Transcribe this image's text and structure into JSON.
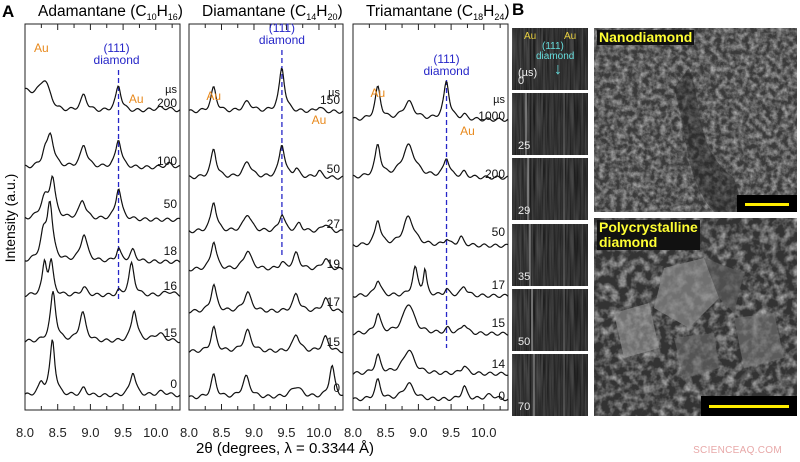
{
  "panel_labels": {
    "a": "A",
    "b": "B"
  },
  "y_axis_label": "Intensity (a.u.)",
  "x_axis_label": "2θ (degrees, λ = 0.3344 Å)",
  "colors": {
    "au": "#e8891c",
    "diamond": "#2626c8",
    "trace": "#111111",
    "strip_text": "#66dddd"
  },
  "chart_data": [
    {
      "type": "line",
      "title_main": "Adamantane (C",
      "title_sub1": "10",
      "title_mid": "H",
      "title_sub2": "16",
      "title_end": ")",
      "xlim": [
        8.0,
        10.37
      ],
      "x_ticks": [
        "8.0",
        "8.5",
        "9.0",
        "9.5",
        "10.0"
      ],
      "unit": "µs",
      "diamond_line_x": 9.43,
      "annotations": {
        "au1": "Au",
        "au2": "Au",
        "d1": "(111)",
        "d2": "diamond"
      },
      "series": [
        {
          "name": "200",
          "peaks": [
            [
              8.3,
              30,
              0.1
            ],
            [
              8.9,
              20,
              0.06
            ],
            [
              9.43,
              32,
              0.05
            ],
            [
              10.1,
              5,
              0.2
            ]
          ],
          "slope": 25
        },
        {
          "name": "100",
          "peaks": [
            [
              8.3,
              15,
              0.05
            ],
            [
              8.39,
              40,
              0.06
            ],
            [
              8.9,
              28,
              0.06
            ],
            [
              9.43,
              36,
              0.05
            ],
            [
              10.2,
              5,
              0.08
            ]
          ],
          "slope": 0
        },
        {
          "name": "50",
          "peaks": [
            [
              8.3,
              25,
              0.08
            ],
            [
              8.42,
              48,
              0.05
            ],
            [
              8.88,
              24,
              0.06
            ],
            [
              9.43,
              40,
              0.05
            ]
          ],
          "slope": 0
        },
        {
          "name": "18",
          "peaks": [
            [
              8.28,
              30,
              0.06
            ],
            [
              8.38,
              70,
              0.05
            ],
            [
              8.9,
              34,
              0.06
            ],
            [
              9.43,
              16,
              0.04
            ],
            [
              9.65,
              14,
              0.05
            ]
          ],
          "slope": 0
        },
        {
          "name": "16",
          "peaks": [
            [
              8.3,
              40,
              0.04
            ],
            [
              8.4,
              40,
              0.04
            ],
            [
              8.9,
              10,
              0.06
            ],
            [
              9.43,
              5,
              0.03
            ],
            [
              9.63,
              40,
              0.05
            ],
            [
              10.2,
              5,
              0.1
            ]
          ],
          "slope": 0
        },
        {
          "name": "15",
          "peaks": [
            [
              8.43,
              62,
              0.05
            ],
            [
              8.88,
              36,
              0.06
            ],
            [
              9.67,
              40,
              0.05
            ],
            [
              10.05,
              10,
              0.1
            ]
          ],
          "slope": 0
        },
        {
          "name": "0",
          "peaks": [
            [
              8.25,
              15,
              0.05
            ],
            [
              8.42,
              70,
              0.045
            ],
            [
              8.9,
              9,
              0.05
            ],
            [
              9.65,
              30,
              0.05
            ],
            [
              10.1,
              5,
              0.1
            ]
          ],
          "slope": 0
        }
      ]
    },
    {
      "type": "line",
      "title_main": "Diamantane (C",
      "title_sub1": "14",
      "title_mid": "H",
      "title_sub2": "20",
      "title_end": ")",
      "xlim": [
        8.0,
        10.37
      ],
      "x_ticks": [
        "8.0",
        "8.5",
        "9.0",
        "9.5",
        "10.0"
      ],
      "unit": "µs",
      "diamond_line_x": 9.43,
      "annotations": {
        "au1": "Au",
        "au2": "Au",
        "d1": "(111)",
        "d2": "diamond"
      },
      "series": [
        {
          "name": "150",
          "peaks": [
            [
              8.38,
              30,
              0.05
            ],
            [
              8.9,
              12,
              0.08
            ],
            [
              9.43,
              55,
              0.05
            ],
            [
              10.0,
              6,
              0.05
            ]
          ],
          "slope": 0
        },
        {
          "name": "50",
          "peaks": [
            [
              8.38,
              36,
              0.05
            ],
            [
              8.9,
              20,
              0.07
            ],
            [
              9.43,
              42,
              0.05
            ],
            [
              9.65,
              10,
              0.05
            ],
            [
              10.0,
              8,
              0.05
            ]
          ],
          "slope": 0
        },
        {
          "name": "27",
          "peaks": [
            [
              8.38,
              38,
              0.05
            ],
            [
              8.9,
              22,
              0.07
            ],
            [
              9.43,
              22,
              0.05
            ],
            [
              9.7,
              10,
              0.05
            ],
            [
              10.1,
              10,
              0.06
            ]
          ],
          "slope": 0
        },
        {
          "name": "19",
          "peaks": [
            [
              8.38,
              36,
              0.05
            ],
            [
              8.9,
              24,
              0.07
            ],
            [
              9.43,
              8,
              0.05
            ],
            [
              9.65,
              20,
              0.06
            ],
            [
              10.1,
              14,
              0.06
            ]
          ],
          "slope": 0
        },
        {
          "name": "17",
          "peaks": [
            [
              8.38,
              34,
              0.05
            ],
            [
              8.9,
              24,
              0.07
            ],
            [
              9.65,
              22,
              0.06
            ],
            [
              10.1,
              16,
              0.06
            ]
          ],
          "slope": 0
        },
        {
          "name": "15",
          "peaks": [
            [
              8.38,
              30,
              0.05
            ],
            [
              8.9,
              26,
              0.07
            ],
            [
              9.65,
              22,
              0.06
            ],
            [
              10.1,
              18,
              0.06
            ]
          ],
          "slope": 0
        },
        {
          "name": "0",
          "peaks": [
            [
              8.38,
              28,
              0.05
            ],
            [
              8.88,
              26,
              0.07
            ],
            [
              9.65,
              14,
              0.1
            ],
            [
              10.2,
              40,
              0.05
            ]
          ],
          "slope": 0
        }
      ]
    },
    {
      "type": "line",
      "title_main": "Triamantane (C",
      "title_sub1": "18",
      "title_mid": "H",
      "title_sub2": "24",
      "title_end": ")",
      "xlim": [
        8.0,
        10.37
      ],
      "x_ticks": [
        "8.0",
        "8.5",
        "9.0",
        "9.5",
        "10.0"
      ],
      "unit": "µs",
      "diamond_line_x": 9.43,
      "annotations": {
        "au1": "Au",
        "au2": "Au",
        "d1": "(111)",
        "d2": "diamond"
      },
      "series": [
        {
          "name": "1000",
          "peaks": [
            [
              8.38,
              40,
              0.05
            ],
            [
              8.85,
              22,
              0.1
            ],
            [
              9.43,
              48,
              0.05
            ],
            [
              9.7,
              5,
              0.05
            ]
          ],
          "slope": 0
        },
        {
          "name": "200",
          "peaks": [
            [
              8.38,
              40,
              0.05
            ],
            [
              8.85,
              40,
              0.12
            ],
            [
              9.43,
              24,
              0.05
            ],
            [
              9.7,
              6,
              0.05
            ]
          ],
          "slope": 0
        },
        {
          "name": "50",
          "peaks": [
            [
              8.38,
              32,
              0.05
            ],
            [
              8.85,
              36,
              0.1
            ],
            [
              9.43,
              8,
              0.04
            ],
            [
              9.65,
              10,
              0.05
            ]
          ],
          "slope": 0
        },
        {
          "name": "17",
          "peaks": [
            [
              8.38,
              20,
              0.05
            ],
            [
              8.95,
              34,
              0.05
            ],
            [
              9.1,
              30,
              0.03
            ],
            [
              9.43,
              8,
              0.04
            ],
            [
              9.7,
              12,
              0.05
            ]
          ],
          "slope": 0
        },
        {
          "name": "15",
          "peaks": [
            [
              8.38,
              24,
              0.05
            ],
            [
              8.85,
              38,
              0.1
            ],
            [
              9.45,
              6,
              0.05
            ],
            [
              9.7,
              12,
              0.05
            ]
          ],
          "slope": 0
        },
        {
          "name": "14",
          "peaks": [
            [
              8.38,
              22,
              0.05
            ],
            [
              8.85,
              30,
              0.1
            ],
            [
              9.7,
              10,
              0.05
            ]
          ],
          "slope": 0
        },
        {
          "name": "0",
          "peaks": [
            [
              8.38,
              24,
              0.05
            ],
            [
              8.85,
              20,
              0.1
            ],
            [
              9.7,
              16,
              0.05
            ],
            [
              10.1,
              6,
              0.1
            ]
          ],
          "slope": 0
        }
      ]
    }
  ],
  "strip": {
    "annotations": {
      "au1": "Au",
      "au2": "Au",
      "d1": "(111)",
      "d2": "diamond",
      "unit": "(µs)"
    },
    "frames": [
      "0",
      "25",
      "29",
      "35",
      "50",
      "70"
    ]
  },
  "sem": {
    "top_label": "Nanodiamond",
    "bottom_label_1": "Polycrystalline",
    "bottom_label_2": "diamond"
  },
  "watermark": "SCIENCEAQ.COM"
}
